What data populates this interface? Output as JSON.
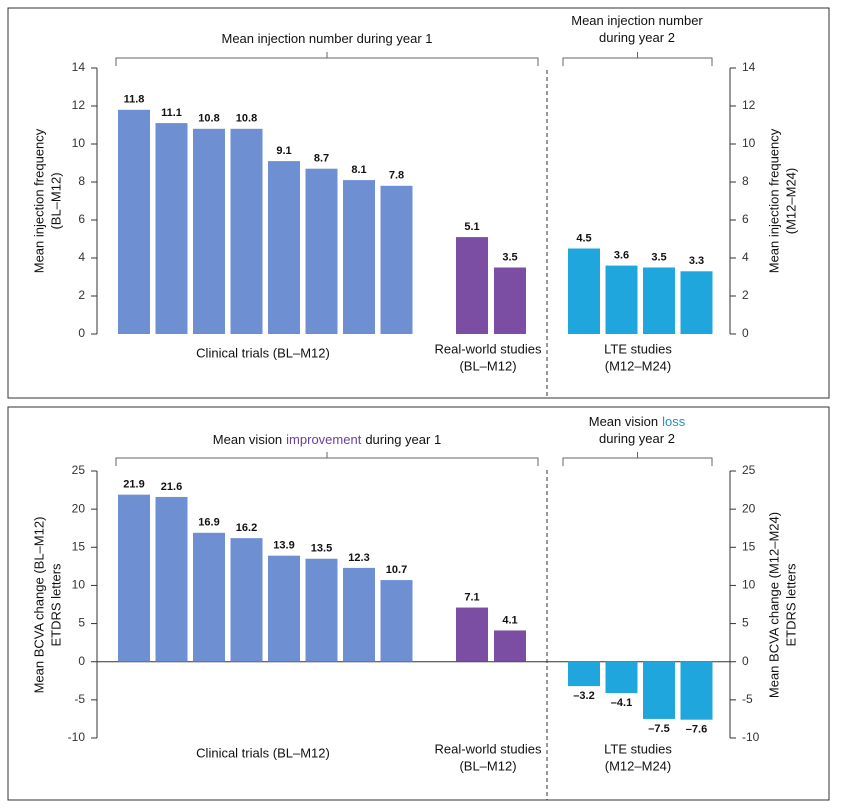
{
  "chart_data": [
    {
      "type": "bar",
      "headers": [
        {
          "lines": [
            [
              {
                "text": "Mean injection number during year 1"
              }
            ]
          ]
        },
        {
          "lines": [
            [
              {
                "text": "Mean injection number"
              }
            ],
            [
              {
                "text": "during year 2"
              }
            ]
          ]
        }
      ],
      "ylabel": [
        "Mean injection frequency",
        "(BL–M12)"
      ],
      "y2label": [
        "Mean injection frequency",
        "(M12–M24)"
      ],
      "ylim": [
        0,
        14
      ],
      "yticks": [
        0,
        2,
        4,
        6,
        8,
        10,
        12,
        14
      ],
      "y2lim": [
        0,
        14
      ],
      "y2ticks": [
        0,
        2,
        4,
        6,
        8,
        10,
        12,
        14
      ],
      "groups": [
        {
          "label": [
            "Clinical trials (BL–M12)"
          ],
          "color": "#6f8fd3",
          "label_color": "#8ea4d6",
          "values": [
            11.8,
            11.1,
            10.8,
            10.8,
            9.1,
            8.7,
            8.1,
            7.8
          ]
        },
        {
          "label": [
            "Real-world studies",
            "(BL–M12)"
          ],
          "color": "#7b4ea3",
          "label_color": "#7b4ea3",
          "values": [
            5.1,
            3.5
          ]
        },
        {
          "label": [
            "LTE studies",
            "(M12–M24)"
          ],
          "color": "#1fa6dc",
          "label_color": "#2aa3c9",
          "axis": "y2",
          "values": [
            4.5,
            3.6,
            3.5,
            3.3
          ]
        }
      ]
    },
    {
      "type": "bar",
      "headers": [
        {
          "lines": [
            [
              {
                "text": "Mean vision"
              },
              {
                "text": "improvement",
                "color": "#6b3f99"
              },
              {
                "text": "during year 1"
              }
            ]
          ]
        },
        {
          "lines": [
            [
              {
                "text": "Mean vision"
              },
              {
                "text": "loss",
                "color": "#2b8fba"
              }
            ],
            [
              {
                "text": "during year 2"
              }
            ]
          ]
        }
      ],
      "ylabel": [
        "Mean BCVA change (BL–M12)",
        "ETDRS letters"
      ],
      "y2label": [
        "Mean BCVA change (M12–M24)",
        "ETDRS letters"
      ],
      "ylim": [
        -10,
        25
      ],
      "yticks": [
        -10,
        -5,
        0,
        5,
        10,
        15,
        20,
        25
      ],
      "y2lim": [
        -10,
        25
      ],
      "y2ticks": [
        -10,
        -5,
        0,
        5,
        10,
        15,
        20,
        25
      ],
      "groups": [
        {
          "label": [
            "Clinical trials (BL–M12)"
          ],
          "color": "#6f8fd3",
          "label_color": "#8ea4d6",
          "values": [
            21.9,
            21.6,
            16.9,
            16.2,
            13.9,
            13.5,
            12.3,
            10.7
          ]
        },
        {
          "label": [
            "Real-world studies",
            "(BL–M12)"
          ],
          "color": "#7b4ea3",
          "label_color": "#7b4ea3",
          "values": [
            7.1,
            4.1
          ]
        },
        {
          "label": [
            "LTE studies",
            "(M12–M24)"
          ],
          "color": "#1fa6dc",
          "label_color": "#2aa3c9",
          "axis": "y2",
          "values": [
            -3.2,
            -4.1,
            -7.5,
            -7.6
          ],
          "value_labels": [
            "–3.2",
            "–4.1",
            "–7.5",
            "–7.6"
          ]
        }
      ]
    }
  ]
}
